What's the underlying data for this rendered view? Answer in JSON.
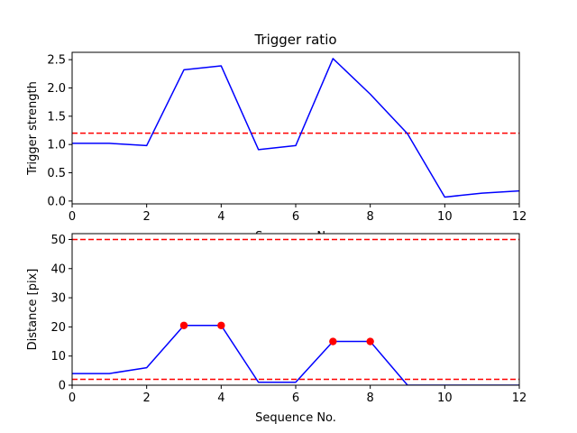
{
  "chart_data": [
    {
      "type": "line",
      "title": "Trigger ratio",
      "xlabel": "Sequence No.",
      "ylabel": "Trigger strength",
      "xlim": [
        0,
        12
      ],
      "ylim": [
        -0.05,
        2.63
      ],
      "xticks": [
        "0",
        "2",
        "4",
        "6",
        "8",
        "10",
        "12"
      ],
      "yticks": [
        "0.0",
        "0.5",
        "1.0",
        "1.5",
        "2.0",
        "2.5"
      ],
      "grid": false,
      "series": [
        {
          "color": "#0000ff",
          "style": "solid",
          "x": [
            0,
            1,
            2,
            3,
            4,
            5,
            6,
            7,
            8,
            9,
            10,
            11,
            12
          ],
          "values": [
            1.02,
            1.02,
            0.98,
            2.32,
            2.39,
            0.91,
            0.98,
            2.52,
            1.89,
            1.19,
            0.07,
            0.14,
            0.18
          ]
        }
      ],
      "hlines": [
        {
          "y": 1.2,
          "color": "#ff0000",
          "style": "dashed"
        }
      ]
    },
    {
      "type": "line",
      "title": "",
      "xlabel": "Sequence No.",
      "ylabel": "Distance [pix]",
      "xlim": [
        0,
        12
      ],
      "ylim": [
        0,
        52
      ],
      "xticks": [
        "0",
        "2",
        "4",
        "6",
        "8",
        "10",
        "12"
      ],
      "yticks": [
        "0",
        "10",
        "20",
        "30",
        "40",
        "50"
      ],
      "grid": false,
      "series": [
        {
          "color": "#0000ff",
          "style": "solid",
          "x": [
            0,
            1,
            2,
            3,
            4,
            5,
            6,
            7,
            8,
            9,
            10,
            11,
            12
          ],
          "values": [
            4,
            4,
            6,
            20.5,
            20.5,
            1,
            1,
            15,
            15,
            0,
            0,
            0,
            0
          ]
        }
      ],
      "markers": {
        "color": "#ff0000",
        "x": [
          3,
          4,
          7,
          8
        ],
        "values": [
          20.5,
          20.5,
          15,
          15
        ]
      },
      "hlines": [
        {
          "y": 50,
          "color": "#ff0000",
          "style": "dashed"
        },
        {
          "y": 2,
          "color": "#ff0000",
          "style": "dashed"
        }
      ]
    }
  ]
}
